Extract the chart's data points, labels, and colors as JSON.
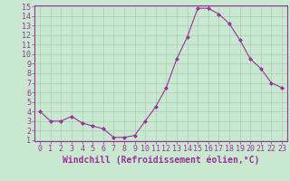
{
  "x": [
    0,
    1,
    2,
    3,
    4,
    5,
    6,
    7,
    8,
    9,
    10,
    11,
    12,
    13,
    14,
    15,
    16,
    17,
    18,
    19,
    20,
    21,
    22,
    23
  ],
  "y": [
    4.0,
    3.0,
    3.0,
    3.5,
    2.8,
    2.5,
    2.2,
    1.3,
    1.3,
    1.5,
    3.0,
    4.5,
    6.5,
    9.5,
    11.8,
    14.8,
    14.8,
    14.2,
    13.2,
    11.5,
    9.5,
    8.5,
    7.0,
    6.5
  ],
  "line_color": "#993399",
  "marker": "D",
  "marker_size": 2,
  "bg_color": "#c8e8d0",
  "grid_color": "#b0c8b8",
  "xlabel": "Windchill (Refroidissement éolien,°C)",
  "ylim": [
    1,
    15
  ],
  "xlim": [
    -0.5,
    23.5
  ],
  "yticks": [
    1,
    2,
    3,
    4,
    5,
    6,
    7,
    8,
    9,
    10,
    11,
    12,
    13,
    14,
    15
  ],
  "xticks": [
    0,
    1,
    2,
    3,
    4,
    5,
    6,
    7,
    8,
    9,
    10,
    11,
    12,
    13,
    14,
    15,
    16,
    17,
    18,
    19,
    20,
    21,
    22,
    23
  ],
  "tick_color": "#993399",
  "spine_color": "#993399",
  "font_size": 6,
  "xlabel_font_size": 7
}
